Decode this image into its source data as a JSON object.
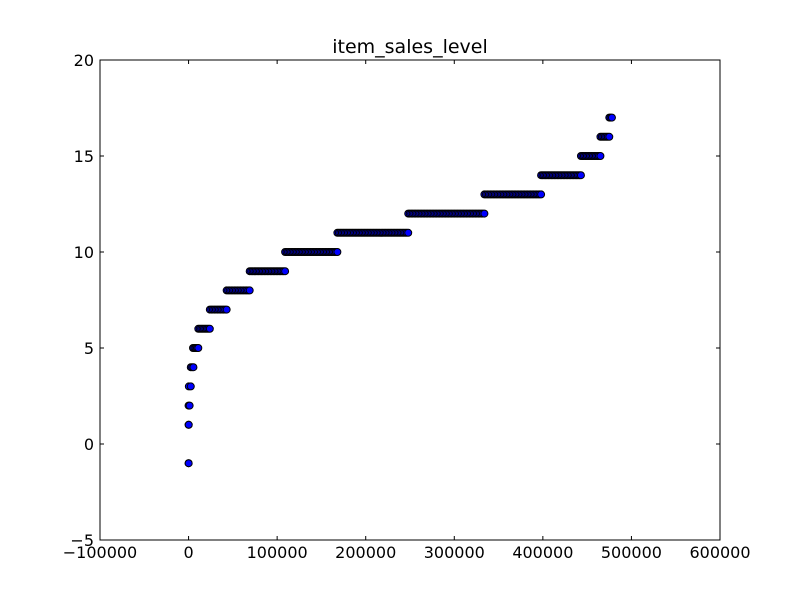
{
  "chart_data": {
    "type": "scatter",
    "title": "item_sales_level",
    "xlabel": "",
    "ylabel": "",
    "xlim": [
      -100000,
      600000
    ],
    "ylim": [
      -5,
      20
    ],
    "x_ticks": [
      {
        "value": -100000,
        "label": "−100000"
      },
      {
        "value": 0,
        "label": "0"
      },
      {
        "value": 100000,
        "label": "100000"
      },
      {
        "value": 200000,
        "label": "200000"
      },
      {
        "value": 300000,
        "label": "300000"
      },
      {
        "value": 400000,
        "label": "400000"
      },
      {
        "value": 500000,
        "label": "500000"
      },
      {
        "value": 600000,
        "label": "600000"
      }
    ],
    "y_ticks": [
      {
        "value": -5,
        "label": "−5"
      },
      {
        "value": 0,
        "label": "0"
      },
      {
        "value": 5,
        "label": "5"
      },
      {
        "value": 10,
        "label": "10"
      },
      {
        "value": 15,
        "label": "15"
      },
      {
        "value": 20,
        "label": "20"
      }
    ],
    "grid": false,
    "legend": "none",
    "marker_color": "#0000ff",
    "marker_edge_color": "#000000",
    "series": [
      {
        "segments": [
          {
            "y": -1,
            "x_start": 0,
            "x_end": 100
          },
          {
            "y": 1,
            "x_start": 0,
            "x_end": 200
          },
          {
            "y": 2,
            "x_start": 0,
            "x_end": 1200
          },
          {
            "y": 3,
            "x_start": 300,
            "x_end": 2500
          },
          {
            "y": 4,
            "x_start": 2500,
            "x_end": 5500
          },
          {
            "y": 5,
            "x_start": 5000,
            "x_end": 11000
          },
          {
            "y": 6,
            "x_start": 11000,
            "x_end": 24000
          },
          {
            "y": 7,
            "x_start": 24000,
            "x_end": 43000
          },
          {
            "y": 8,
            "x_start": 43000,
            "x_end": 69000
          },
          {
            "y": 9,
            "x_start": 69000,
            "x_end": 109000
          },
          {
            "y": 10,
            "x_start": 109000,
            "x_end": 168000
          },
          {
            "y": 11,
            "x_start": 168000,
            "x_end": 248000
          },
          {
            "y": 12,
            "x_start": 248000,
            "x_end": 334000
          },
          {
            "y": 13,
            "x_start": 334000,
            "x_end": 398000
          },
          {
            "y": 14,
            "x_start": 398000,
            "x_end": 443000
          },
          {
            "y": 15,
            "x_start": 443000,
            "x_end": 465000
          },
          {
            "y": 16,
            "x_start": 465000,
            "x_end": 475000
          },
          {
            "y": 17,
            "x_start": 475000,
            "x_end": 478000
          }
        ]
      }
    ]
  }
}
